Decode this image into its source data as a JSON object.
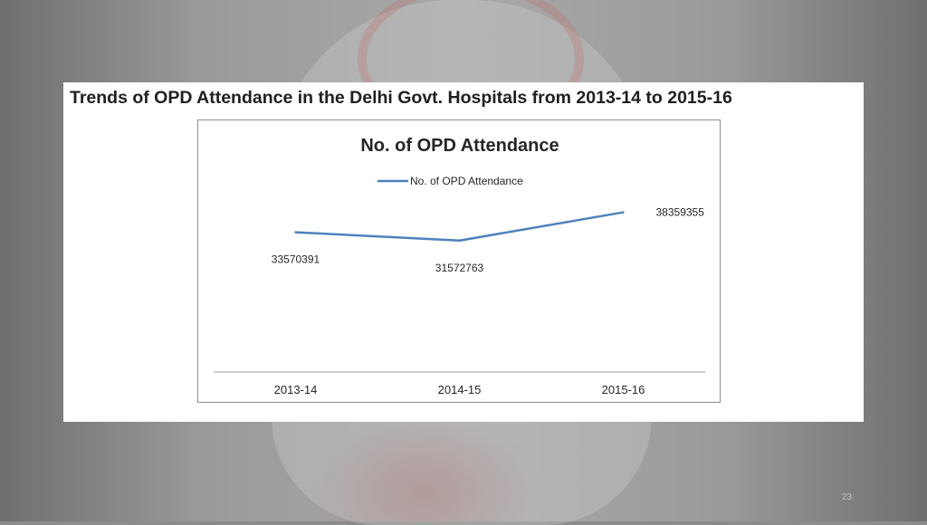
{
  "slide": {
    "title": "Trends of OPD Attendance in the Delhi Govt. Hospitals from 2013-14 to 2015-16",
    "page_number": "23"
  },
  "colors": {
    "series_line": "#4f81bd",
    "axis": "#bfbfbf",
    "text": "#262626"
  },
  "chart_data": {
    "type": "line",
    "title": "No. of OPD Attendance",
    "xlabel": "",
    "ylabel": "",
    "categories": [
      "2013-14",
      "2014-15",
      "2015-16"
    ],
    "series": [
      {
        "name": "No. of OPD Attendance",
        "values": [
          33570391,
          31572763,
          38359355
        ],
        "data_labels": [
          "33570391",
          "31572763",
          "38359355"
        ]
      }
    ],
    "ylim": [
      0,
      50000000
    ],
    "grid": false,
    "legend": "top"
  }
}
